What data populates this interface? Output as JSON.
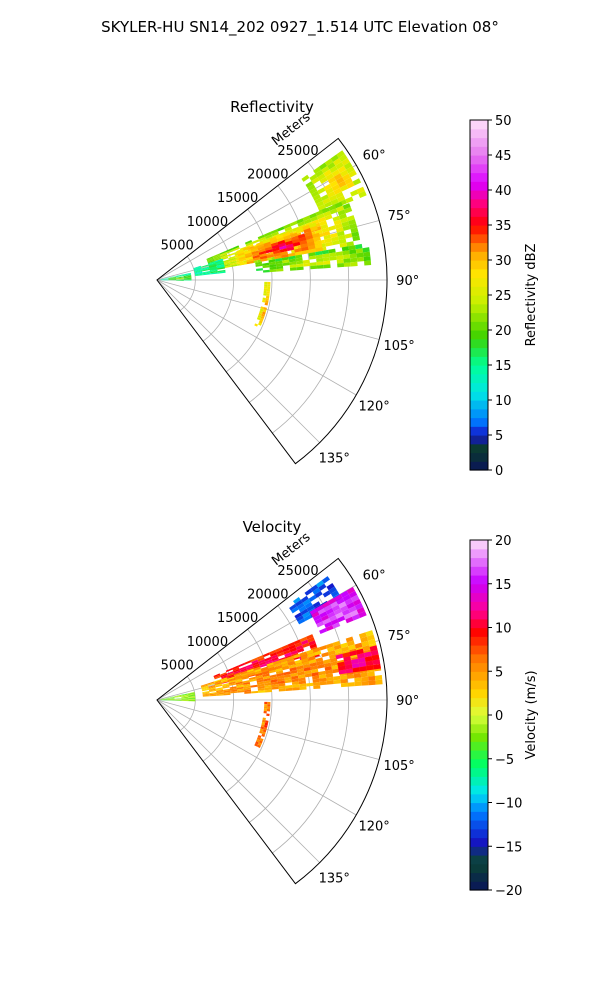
{
  "figure": {
    "title": "SKYLER-HU  SN14_202  0927_1.514 UTC Elevation 08°"
  },
  "chart_data": [
    {
      "type": "polar_sector",
      "title": "Reflectivity",
      "radial_axis_label": "Meters",
      "radial_ticks": [
        "5000",
        "10000",
        "15000",
        "20000",
        "25000"
      ],
      "radial_tick_values": [
        5000,
        10000,
        15000,
        20000,
        25000
      ],
      "r_max": 30000,
      "azimuth_range_deg": [
        52,
        143
      ],
      "azimuth_ticks": [
        "60°",
        "75°",
        "90°",
        "105°",
        "120°",
        "135°"
      ],
      "azimuth_tick_values": [
        60,
        75,
        90,
        105,
        120,
        135
      ],
      "grid": true,
      "colorbar": {
        "label": "Reflectivity dBZ",
        "range": [
          0,
          50
        ],
        "ticks": [
          "0",
          "5",
          "10",
          "15",
          "20",
          "25",
          "30",
          "35",
          "40",
          "45",
          "50"
        ],
        "tick_values": [
          0,
          5,
          10,
          15,
          20,
          25,
          30,
          35,
          40,
          45,
          50
        ]
      },
      "echo_regions": [
        {
          "az": [
            55,
            68
          ],
          "r": [
            23000,
            29500
          ],
          "value": 23,
          "peak": 30
        },
        {
          "az": [
            67,
            80
          ],
          "r": [
            7000,
            27000
          ],
          "value": 21,
          "peak": 36
        },
        {
          "az": [
            70,
            80
          ],
          "r": [
            11000,
            22000
          ],
          "value": 28,
          "peak": 38
        },
        {
          "az": [
            80,
            86
          ],
          "r": [
            13000,
            28000
          ],
          "value": 19,
          "peak": 26
        },
        {
          "az": [
            72,
            84
          ],
          "r": [
            5000,
            9000
          ],
          "value": 14,
          "peak": 18
        },
        {
          "az": [
            78,
            92
          ],
          "r": [
            500,
            4500
          ],
          "value": 14,
          "peak": 22
        },
        {
          "az": [
            91,
            115
          ],
          "r": [
            14000,
            14800
          ],
          "value": 27,
          "peak": 31
        }
      ]
    },
    {
      "type": "polar_sector",
      "title": "Velocity",
      "radial_axis_label": "Meters",
      "radial_ticks": [
        "5000",
        "10000",
        "15000",
        "20000",
        "25000"
      ],
      "radial_tick_values": [
        5000,
        10000,
        15000,
        20000,
        25000
      ],
      "r_max": 30000,
      "azimuth_range_deg": [
        52,
        143
      ],
      "azimuth_ticks": [
        "60°",
        "75°",
        "90°",
        "105°",
        "120°",
        "135°"
      ],
      "azimuth_tick_values": [
        60,
        75,
        90,
        105,
        120,
        135
      ],
      "grid": true,
      "colorbar": {
        "label": "Velocity (m/s)",
        "range": [
          -20,
          20
        ],
        "ticks": [
          "−20",
          "−15",
          "−10",
          "−5",
          "0",
          "5",
          "10",
          "15",
          "20"
        ],
        "tick_values": [
          -20,
          -15,
          -10,
          -5,
          0,
          5,
          10,
          15,
          20
        ]
      },
      "echo_regions": [
        {
          "az": [
            54,
            62
          ],
          "r": [
            21000,
            27500
          ],
          "value": -12,
          "peak": -13
        },
        {
          "az": [
            60,
            68
          ],
          "r": [
            23000,
            29500
          ],
          "value": 15,
          "peak": 17
        },
        {
          "az": [
            67,
            76
          ],
          "r": [
            8000,
            22000
          ],
          "value": 9,
          "peak": 11
        },
        {
          "az": [
            72,
            86
          ],
          "r": [
            6000,
            29500
          ],
          "value": 4,
          "peak": 6
        },
        {
          "az": [
            76,
            82
          ],
          "r": [
            24000,
            29500
          ],
          "value": 10,
          "peak": 12
        },
        {
          "az": [
            78,
            92
          ],
          "r": [
            500,
            5000
          ],
          "value": -3,
          "peak": -1
        },
        {
          "az": [
            91,
            115
          ],
          "r": [
            14000,
            14800
          ],
          "value": 6,
          "peak": 7
        }
      ]
    }
  ]
}
